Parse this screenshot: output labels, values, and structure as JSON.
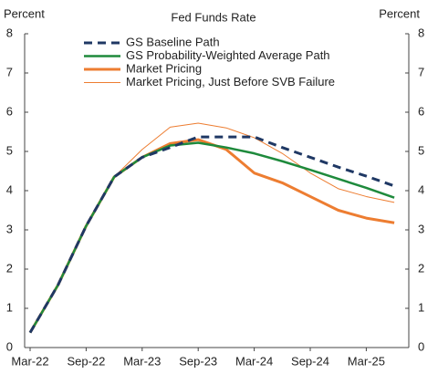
{
  "chart_data": {
    "type": "line",
    "title": "Fed Funds Rate",
    "y_label": "Percent",
    "y2_label": "Percent",
    "categories": [
      "Mar-22",
      null,
      "Sep-22",
      null,
      "Mar-23",
      null,
      "Sep-23",
      null,
      "Mar-24",
      null,
      "Sep-24",
      null,
      "Mar-25",
      null
    ],
    "series": [
      {
        "name": "GS Baseline Path",
        "color": "#1f3864",
        "style": "dashed",
        "width": 3,
        "values": [
          0.38,
          1.6,
          3.1,
          4.35,
          4.85,
          5.1,
          5.37,
          5.37,
          5.37,
          5.1,
          4.85,
          4.6,
          4.37,
          4.12
        ]
      },
      {
        "name": "GS Probability-Weighted Average Path",
        "color": "#1e8a3c",
        "style": "solid",
        "width": 2.5,
        "values": [
          0.38,
          1.6,
          3.1,
          4.35,
          4.85,
          5.15,
          5.22,
          5.1,
          4.95,
          4.75,
          4.53,
          4.3,
          4.07,
          3.82
        ]
      },
      {
        "name": "Market Pricing",
        "color": "#ed7d31",
        "style": "solid",
        "width": 3,
        "values": [
          0.38,
          1.6,
          3.1,
          4.35,
          4.85,
          5.2,
          5.3,
          5.05,
          4.45,
          4.2,
          3.85,
          3.5,
          3.3,
          3.18
        ]
      },
      {
        "name": "Market Pricing, Just Before SVB Failure",
        "color": "#ed7d31",
        "style": "solid",
        "width": 1,
        "values": [
          0.38,
          1.6,
          3.1,
          4.35,
          5.05,
          5.62,
          5.72,
          5.6,
          5.35,
          4.95,
          4.45,
          4.05,
          3.85,
          3.7
        ]
      }
    ],
    "ylim": [
      0,
      8
    ],
    "yticks": [
      0,
      1,
      2,
      3,
      4,
      5,
      6,
      7,
      8
    ],
    "y2lim": [
      0,
      8
    ],
    "y2ticks": [
      0,
      1,
      2,
      3,
      4,
      5,
      6,
      7,
      8
    ],
    "grid": false,
    "legend": "top"
  }
}
